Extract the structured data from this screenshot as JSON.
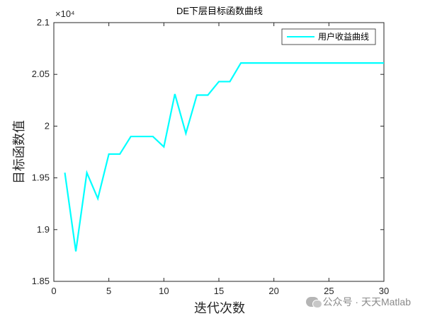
{
  "chart_data": {
    "type": "line",
    "title": "DE下层目标函数曲线",
    "xlabel": "迭代次数",
    "ylabel": "目标函数值",
    "y_exponent": "×10⁴",
    "xlim": [
      0,
      30
    ],
    "ylim": [
      1.85,
      2.1
    ],
    "xticks": [
      0,
      5,
      10,
      15,
      20,
      25,
      30
    ],
    "yticks": [
      1.85,
      1.9,
      1.95,
      2,
      2.05,
      2.1
    ],
    "ytick_labels": [
      "1.85",
      "1.9",
      "1.95",
      "2",
      "2.05",
      "2.1"
    ],
    "grid": false,
    "legend_position": "top-right",
    "series": [
      {
        "name": "用户收益曲线",
        "color": "#00ffff",
        "x": [
          1,
          2,
          3,
          4,
          5,
          6,
          7,
          8,
          9,
          10,
          11,
          12,
          13,
          14,
          15,
          16,
          17,
          18,
          19,
          20,
          21,
          22,
          23,
          24,
          25,
          26,
          27,
          28,
          29,
          30
        ],
        "values": [
          1.955,
          1.879,
          1.955,
          1.93,
          1.973,
          1.973,
          1.99,
          1.99,
          1.99,
          1.98,
          2.031,
          1.993,
          2.03,
          2.03,
          2.043,
          2.043,
          2.061,
          2.061,
          2.061,
          2.061,
          2.061,
          2.061,
          2.061,
          2.061,
          2.061,
          2.061,
          2.061,
          2.061,
          2.061,
          2.061
        ]
      }
    ]
  },
  "watermark": {
    "text": "公众号 · 天天Matlab",
    "icon": "wechat-icon"
  }
}
